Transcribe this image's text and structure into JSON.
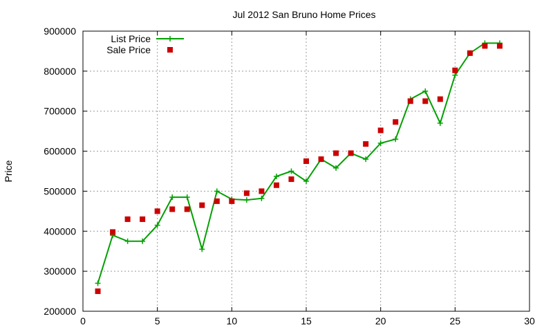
{
  "chart_data": {
    "type": "line",
    "title": "Jul 2012 San Bruno Home Prices",
    "xlabel": "",
    "ylabel": "Price",
    "xlim": [
      0,
      30
    ],
    "ylim": [
      200000,
      900000
    ],
    "x_ticks": [
      "0",
      "5",
      "10",
      "15",
      "20",
      "25",
      "30"
    ],
    "y_ticks": [
      "200000",
      "300000",
      "400000",
      "500000",
      "600000",
      "700000",
      "800000",
      "900000"
    ],
    "grid": true,
    "legend_position": "top-left",
    "series": [
      {
        "name": "List Price",
        "style": "line-with-plus-markers",
        "color": "#00a000",
        "x": [
          1,
          2,
          3,
          4,
          5,
          6,
          7,
          8,
          9,
          10,
          11,
          12,
          13,
          14,
          15,
          16,
          17,
          18,
          19,
          20,
          21,
          22,
          23,
          24,
          25,
          26,
          27,
          28
        ],
        "values": [
          270000,
          390000,
          375000,
          375000,
          415000,
          485000,
          485000,
          355000,
          500000,
          480000,
          478000,
          482000,
          537000,
          550000,
          525000,
          580000,
          558000,
          595000,
          580000,
          620000,
          630000,
          730000,
          750000,
          670000,
          790000,
          845000,
          870000,
          870000
        ]
      },
      {
        "name": "Sale Price",
        "style": "square-markers",
        "color": "#cc0000",
        "x": [
          1,
          2,
          3,
          4,
          5,
          6,
          7,
          8,
          9,
          10,
          11,
          12,
          13,
          14,
          15,
          16,
          17,
          18,
          19,
          20,
          21,
          22,
          23,
          24,
          25,
          26,
          27,
          28
        ],
        "values": [
          250000,
          398000,
          430000,
          430000,
          450000,
          455000,
          455000,
          465000,
          475000,
          475000,
          495000,
          500000,
          515000,
          530000,
          575000,
          580000,
          595000,
          595000,
          618000,
          652000,
          673000,
          725000,
          725000,
          730000,
          802000,
          845000,
          863000,
          863000
        ]
      }
    ]
  }
}
